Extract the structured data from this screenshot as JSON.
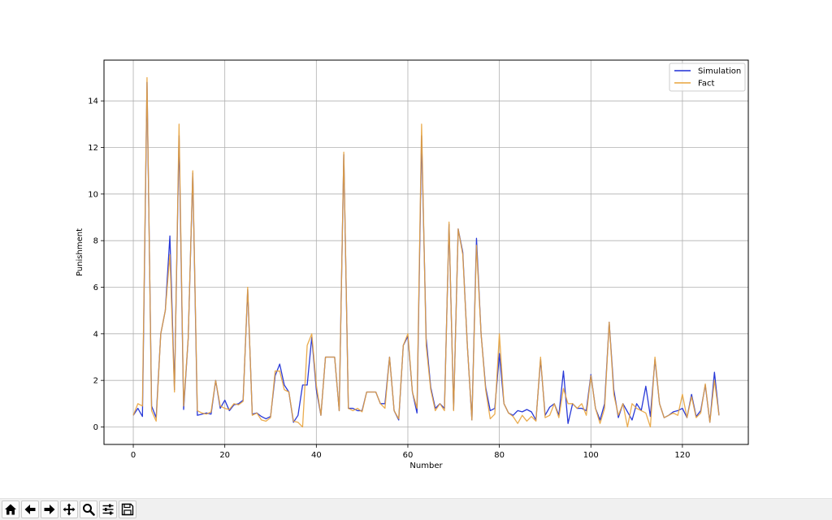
{
  "chart_data": {
    "type": "line",
    "title": "",
    "xlabel": "Number",
    "ylabel": "Punishment",
    "xlim": [
      -6.4,
      134.4
    ],
    "ylim": [
      -0.75,
      15.75
    ],
    "xticks": [
      0,
      20,
      40,
      60,
      80,
      100,
      120
    ],
    "yticks": [
      0,
      2,
      4,
      6,
      8,
      10,
      12,
      14
    ],
    "grid": true,
    "legend_position": "top-right",
    "series": [
      {
        "name": "Simulation",
        "color": "#1f2fd6",
        "values": [
          0.5,
          0.8,
          0.45,
          14.8,
          0.9,
          0.4,
          4.0,
          5.0,
          8.2,
          1.6,
          12.5,
          0.75,
          3.8,
          10.9,
          0.5,
          0.55,
          0.6,
          0.55,
          2.0,
          0.8,
          1.15,
          0.7,
          0.95,
          1.0,
          1.15,
          5.9,
          0.55,
          0.6,
          0.45,
          0.35,
          0.45,
          2.2,
          2.7,
          1.8,
          1.5,
          0.2,
          0.5,
          1.8,
          1.8,
          3.85,
          1.6,
          0.5,
          3.0,
          3.0,
          3.0,
          0.7,
          11.7,
          0.8,
          0.8,
          0.7,
          0.7,
          1.5,
          1.5,
          1.5,
          1.0,
          1.0,
          3.0,
          0.7,
          0.3,
          3.5,
          3.9,
          1.5,
          0.6,
          12.5,
          3.8,
          1.7,
          0.8,
          1.0,
          0.8,
          8.7,
          0.75,
          8.5,
          7.5,
          3.5,
          0.3,
          8.1,
          4.0,
          1.7,
          0.7,
          0.8,
          3.15,
          1.0,
          0.6,
          0.5,
          0.7,
          0.65,
          0.75,
          0.65,
          0.3,
          2.9,
          0.5,
          0.85,
          1.0,
          0.5,
          2.4,
          0.15,
          1.0,
          0.8,
          0.8,
          0.7,
          2.25,
          0.8,
          0.3,
          1.0,
          4.5,
          1.6,
          0.4,
          1.0,
          0.65,
          0.3,
          1.0,
          0.7,
          1.75,
          0.45,
          2.9,
          1.0,
          0.4,
          0.5,
          0.65,
          0.7,
          0.8,
          0.4,
          1.4,
          0.45,
          0.7,
          1.8,
          0.2,
          2.35,
          0.5
        ]
      },
      {
        "name": "Fact",
        "color": "#e8a33c",
        "values": [
          0.5,
          1.0,
          0.9,
          15.0,
          0.7,
          0.25,
          4.0,
          5.0,
          7.4,
          1.5,
          13.0,
          0.9,
          3.8,
          11.0,
          0.7,
          0.6,
          0.55,
          0.65,
          2.0,
          0.9,
          0.8,
          0.75,
          1.0,
          0.95,
          1.1,
          6.0,
          0.5,
          0.6,
          0.3,
          0.25,
          0.4,
          2.4,
          2.4,
          1.6,
          1.5,
          0.25,
          0.2,
          0.0,
          3.5,
          4.0,
          1.8,
          0.5,
          3.0,
          3.0,
          3.0,
          0.7,
          11.8,
          0.8,
          0.7,
          0.8,
          0.65,
          1.5,
          1.5,
          1.5,
          1.0,
          0.8,
          3.0,
          0.7,
          0.35,
          3.5,
          4.0,
          1.5,
          0.8,
          13.0,
          3.5,
          1.6,
          0.7,
          1.0,
          0.7,
          8.8,
          0.7,
          8.5,
          7.4,
          3.5,
          0.3,
          7.8,
          4.0,
          1.6,
          0.35,
          0.55,
          4.0,
          1.0,
          0.6,
          0.45,
          0.15,
          0.5,
          0.25,
          0.45,
          0.25,
          3.0,
          0.4,
          0.5,
          1.0,
          0.4,
          1.65,
          1.0,
          1.0,
          0.8,
          1.0,
          0.5,
          2.2,
          0.8,
          0.15,
          0.8,
          4.5,
          1.4,
          0.5,
          1.0,
          0.0,
          1.0,
          0.8,
          0.7,
          0.6,
          0.0,
          3.0,
          1.0,
          0.4,
          0.5,
          0.6,
          0.5,
          1.4,
          0.4,
          1.3,
          0.4,
          0.6,
          1.85,
          0.2,
          2.0,
          0.5
        ]
      }
    ]
  },
  "toolbar": {
    "buttons": [
      {
        "name": "home-button",
        "icon": "home-icon"
      },
      {
        "name": "back-button",
        "icon": "arrow-left-icon"
      },
      {
        "name": "forward-button",
        "icon": "arrow-right-icon"
      },
      {
        "name": "pan-button",
        "icon": "move-icon"
      },
      {
        "name": "zoom-button",
        "icon": "magnifier-icon"
      },
      {
        "name": "configure-subplots-button",
        "icon": "sliders-icon"
      },
      {
        "name": "save-button",
        "icon": "floppy-disk-icon"
      }
    ]
  }
}
